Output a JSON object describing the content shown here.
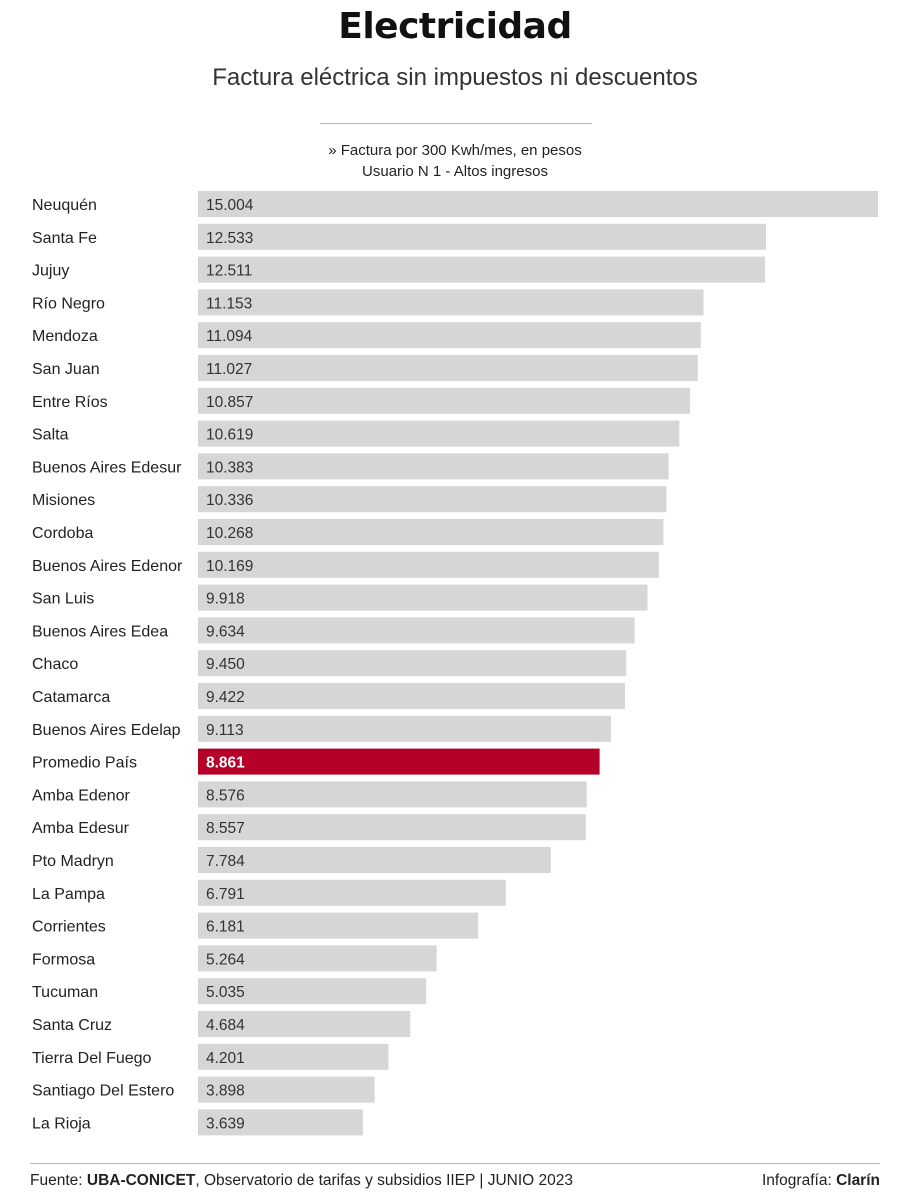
{
  "title": "Electricidad",
  "subtitle": "Factura eléctrica sin impuestos ni descuentos",
  "note": {
    "line1": "» Factura por 300 Kwh/mes, en pesos",
    "line2": "Usuario N 1 - Altos ingresos"
  },
  "footer": {
    "source_prefix": "Fuente: ",
    "source_org": "UBA-CONICET",
    "source_rest": ", Observatorio de tarifas y subsidios IIEP | JUNIO 2023",
    "credit_prefix": "Infografía: ",
    "credit_name": "Clarín"
  },
  "colors": {
    "bar": "#d6d6d6",
    "highlight": "#b5002a"
  },
  "chart_data": {
    "type": "bar",
    "orientation": "horizontal",
    "title": "Electricidad",
    "subtitle": "Factura eléctrica sin impuestos ni descuentos",
    "unit": "pesos",
    "xlim": [
      0,
      15004
    ],
    "highlight": "Promedio País",
    "categories": [
      "Neuquén",
      "Santa Fe",
      "Jujuy",
      "Río Negro",
      "Mendoza",
      "San Juan",
      "Entre Ríos",
      "Salta",
      "Buenos Aires Edesur",
      "Misiones",
      "Cordoba",
      "Buenos Aires Edenor",
      "San Luis",
      "Buenos Aires Edea",
      "Chaco",
      "Catamarca",
      "Buenos Aires Edelap",
      "Promedio País",
      "Amba Edenor",
      "Amba Edesur",
      "Pto Madryn",
      "La Pampa",
      "Corrientes",
      "Formosa",
      "Tucuman",
      "Santa Cruz",
      "Tierra Del Fuego",
      "Santiago Del Estero",
      "La Rioja"
    ],
    "values": [
      15004,
      12533,
      12511,
      11153,
      11094,
      11027,
      10857,
      10619,
      10383,
      10336,
      10268,
      10169,
      9918,
      9634,
      9450,
      9422,
      9113,
      8861,
      8576,
      8557,
      7784,
      6791,
      6181,
      5264,
      5035,
      4684,
      4201,
      3898,
      3639
    ],
    "value_labels": [
      "15.004",
      "12.533",
      "12.511",
      "11.153",
      "11.094",
      "11.027",
      "10.857",
      "10.619",
      "10.383",
      "10.336",
      "10.268",
      "10.169",
      "9.918",
      "9.634",
      "9.450",
      "9.422",
      "9.113",
      "8.861",
      "8.576",
      "8.557",
      "7.784",
      "6.791",
      "6.181",
      "5.264",
      "5.035",
      "4.684",
      "4.201",
      "3.898",
      "3.639"
    ]
  }
}
